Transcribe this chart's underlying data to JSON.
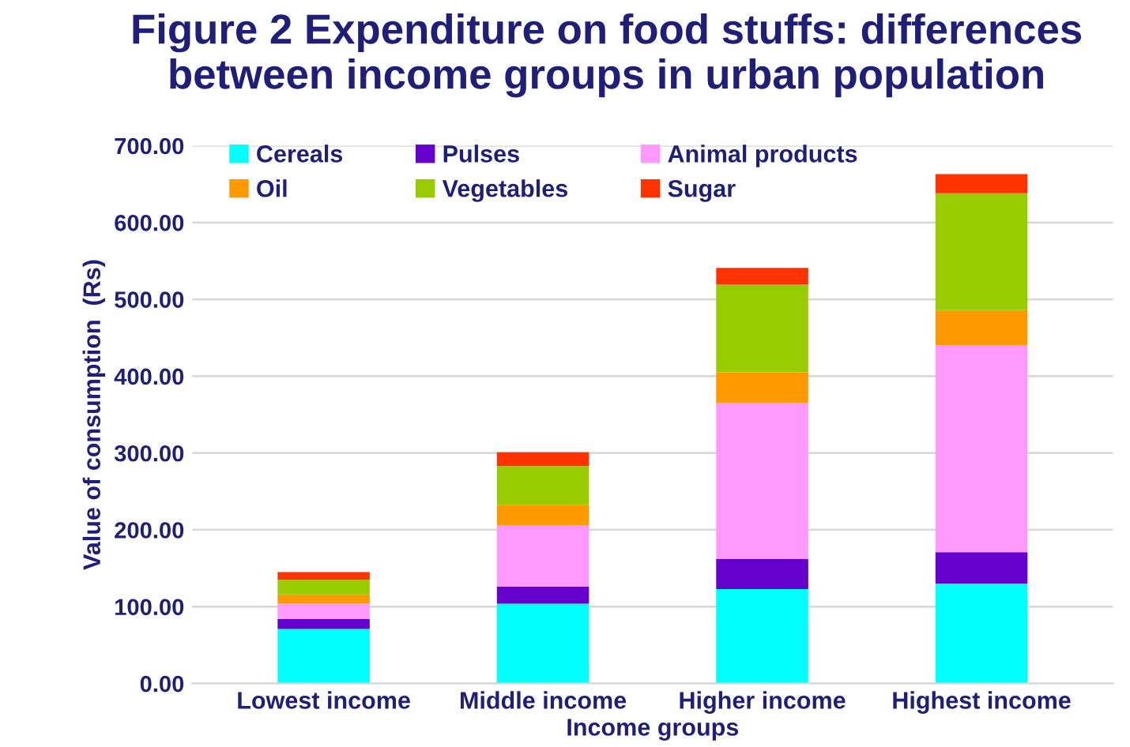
{
  "chart_data": {
    "type": "bar",
    "stacked": true,
    "title": "Figure 2 Expenditure on food stuffs: differences\nbetween income groups in urban population",
    "xlabel": "Income groups",
    "ylabel": "Value of consumption  (Rs)",
    "categories": [
      "Lowest income",
      "Middle income",
      "Higher income",
      "Highest income"
    ],
    "series": [
      {
        "name": "Cereals",
        "color": "#00ffff",
        "values": [
          71,
          104,
          123,
          130
        ]
      },
      {
        "name": "Pulses",
        "color": "#6600cc",
        "values": [
          13,
          22,
          39,
          41
        ]
      },
      {
        "name": "Animal products",
        "color": "#ff99ff",
        "values": [
          20,
          80,
          203,
          269
        ]
      },
      {
        "name": "Oil",
        "color": "#ff9900",
        "values": [
          12,
          26,
          40,
          46
        ]
      },
      {
        "name": "Vegetables",
        "color": "#99cc00",
        "values": [
          19,
          51,
          114,
          152
        ]
      },
      {
        "name": "Sugar",
        "color": "#ff3300",
        "values": [
          10,
          18,
          22,
          25
        ]
      }
    ],
    "ylim": [
      0,
      700
    ],
    "yticks": [
      {
        "value": 0,
        "label": "0.00"
      },
      {
        "value": 100,
        "label": "100.00"
      },
      {
        "value": 200,
        "label": "200.00"
      },
      {
        "value": 300,
        "label": "300.00"
      },
      {
        "value": 400,
        "label": "400.00"
      },
      {
        "value": 500,
        "label": "500.00"
      },
      {
        "value": 600,
        "label": "600.00"
      },
      {
        "value": 700,
        "label": "700.00"
      }
    ],
    "grid": "y",
    "legend": "top left"
  }
}
